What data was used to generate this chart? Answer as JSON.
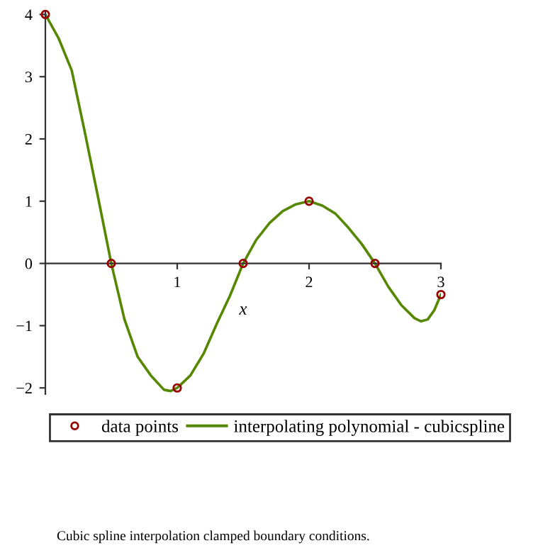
{
  "chart_data": {
    "type": "line",
    "xlabel": "x",
    "xlim": [
      0,
      3
    ],
    "ylim": [
      -2.1,
      4.05
    ],
    "xticks": [
      1,
      2,
      3
    ],
    "yticks": [
      -2,
      -1,
      0,
      1,
      2,
      3,
      4
    ],
    "series": [
      {
        "name": "data points",
        "type": "scatter",
        "marker": "circle",
        "color": "#990000",
        "x": [
          0,
          0.5,
          1,
          1.5,
          2,
          2.5,
          3
        ],
        "values": [
          4,
          0,
          -2,
          0,
          1,
          0,
          -0.5
        ]
      },
      {
        "name": "interpolating polynomial - cubicspline",
        "color": "#558800",
        "x": [
          0,
          0.1,
          0.2,
          0.3,
          0.4,
          0.5,
          0.6,
          0.7,
          0.8,
          0.9,
          0.95,
          1.0,
          1.1,
          1.2,
          1.3,
          1.4,
          1.5,
          1.6,
          1.7,
          1.8,
          1.9,
          2.0,
          2.1,
          2.2,
          2.3,
          2.4,
          2.5,
          2.6,
          2.7,
          2.8,
          2.85,
          2.9,
          2.95,
          3.0
        ],
        "values": [
          4,
          3.62,
          3.1,
          2.1,
          1.06,
          0,
          -0.9,
          -1.5,
          -1.8,
          -2.03,
          -2.05,
          -2,
          -1.8,
          -1.45,
          -0.97,
          -0.52,
          0,
          0.38,
          0.65,
          0.84,
          0.95,
          1,
          0.93,
          0.8,
          0.57,
          0.31,
          0,
          -0.37,
          -0.67,
          -0.88,
          -0.93,
          -0.9,
          -0.75,
          -0.5
        ]
      }
    ],
    "legend": "bottom",
    "annotations": [
      "Cubic spline interpolation clamped boundary conditions."
    ]
  }
}
